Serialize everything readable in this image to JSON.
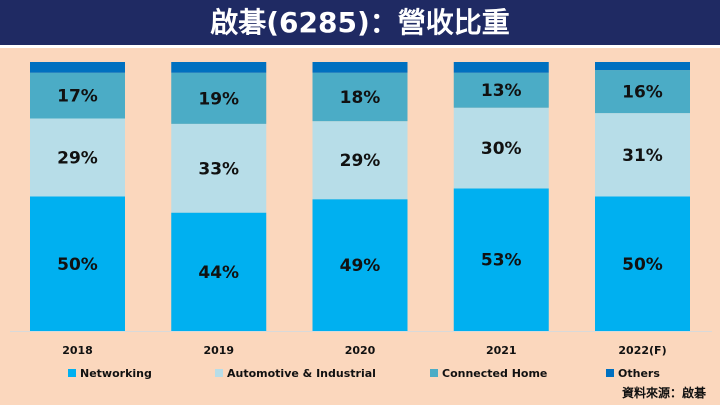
{
  "title": "啟碁(6285)：營收比重",
  "source": "資料來源：啟碁",
  "chart_data": {
    "type": "bar",
    "stacked": true,
    "categories": [
      "2018",
      "2019",
      "2020",
      "2021",
      "2022(F)"
    ],
    "series": [
      {
        "name": "Networking",
        "color": "#00b0f0",
        "values": [
          50,
          44,
          49,
          53,
          50
        ]
      },
      {
        "name": "Automotive & Industrial",
        "color": "#b7dde8",
        "values": [
          29,
          33,
          29,
          30,
          31
        ]
      },
      {
        "name": "Connected Home",
        "color": "#4bacc6",
        "values": [
          17,
          19,
          18,
          13,
          16
        ]
      },
      {
        "name": "Others",
        "color": "#0070c0",
        "values": [
          4,
          4,
          4,
          4,
          3
        ]
      }
    ],
    "data_labels": [
      [
        "50%",
        "44%",
        "49%",
        "53%",
        "50%"
      ],
      [
        "29%",
        "33%",
        "29%",
        "30%",
        "31%"
      ],
      [
        "17%",
        "19%",
        "18%",
        "13%",
        "16%"
      ],
      [
        "",
        "",
        "",
        "",
        ""
      ]
    ],
    "ylim": [
      0,
      100
    ],
    "grid": false,
    "legend_position": "bottom"
  }
}
